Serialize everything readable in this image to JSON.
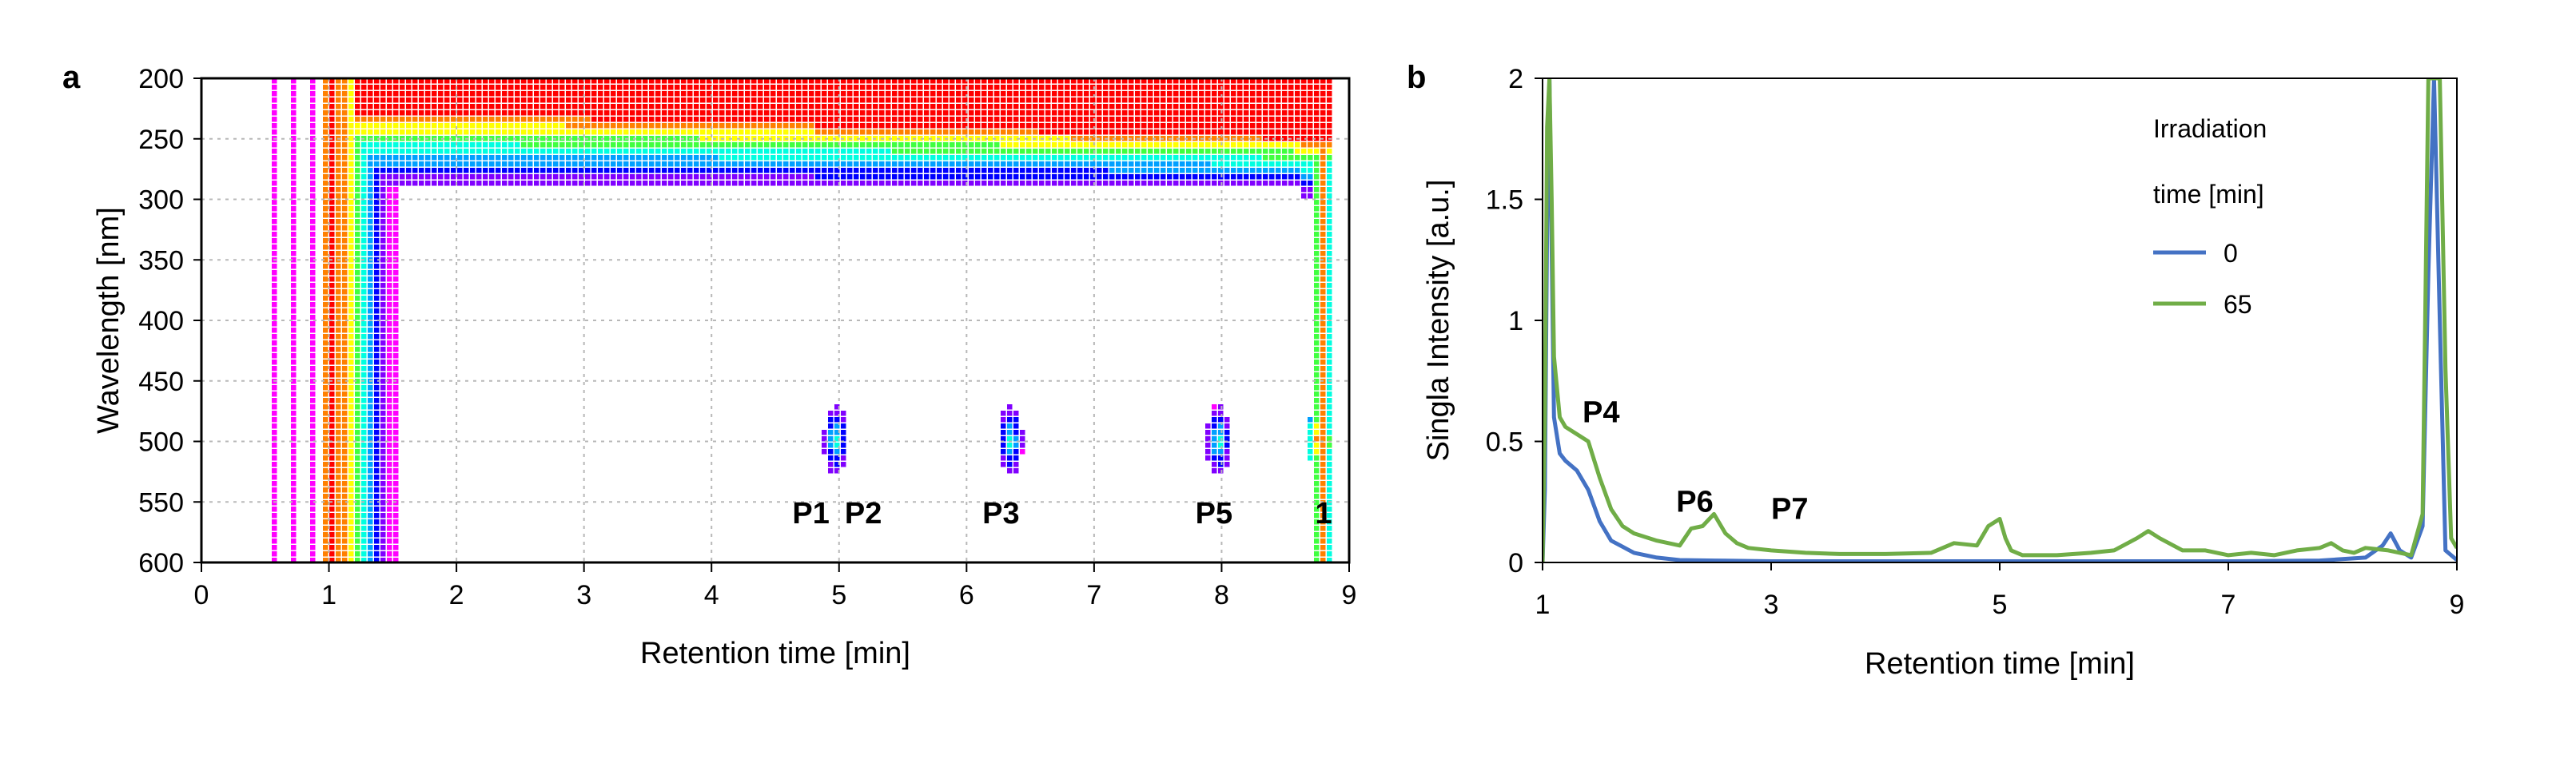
{
  "panels": {
    "a": "a",
    "b": "b"
  },
  "chart_data": [
    {
      "type": "heatmap",
      "panel": "a",
      "xlabel": "Retention time [min]",
      "ylabel": "Wavelength [nm]",
      "xlim": [
        0,
        9
      ],
      "ylim": [
        600,
        200
      ],
      "xticks": [
        "0",
        "1",
        "2",
        "3",
        "4",
        "5",
        "6",
        "7",
        "8",
        "9"
      ],
      "yticks": [
        "200",
        "250",
        "300",
        "350",
        "400",
        "450",
        "500",
        "550",
        "600"
      ],
      "grid": true,
      "colormap": [
        "#ff00ff",
        "#8000ff",
        "#0000ff",
        "#00a0ff",
        "#00ffe0",
        "#40ff40",
        "#ffff00",
        "#ff8000",
        "#ff0000"
      ],
      "background_band": {
        "x_range": [
          1.5,
          8.8
        ],
        "wavelength_absorbing_below": 290
      },
      "solvent_front": {
        "x_range": [
          0.95,
          1.55
        ]
      },
      "spots": [
        {
          "label": "P1 P2",
          "x": 4.98,
          "wavelength": 500
        },
        {
          "label": "P3",
          "x": 6.35,
          "wavelength": 500
        },
        {
          "label": "P5",
          "x": 7.98,
          "wavelength": 500
        },
        {
          "label": "1",
          "x": 8.78,
          "wavelength": 500
        }
      ],
      "annotations": [
        "P1",
        "P2",
        "P3",
        "P5",
        "1"
      ]
    },
    {
      "type": "line",
      "panel": "b",
      "xlabel": "Retention time [min]",
      "ylabel": "Singla Intensity [a.u.]",
      "xlim": [
        1,
        9
      ],
      "ylim": [
        0,
        2
      ],
      "xticks": [
        "1",
        "3",
        "5",
        "7",
        "9"
      ],
      "yticks": [
        "0",
        "0.5",
        "1",
        "1.5",
        "2"
      ],
      "legend_title": [
        "Irradiation",
        "time [min]"
      ],
      "legend_position": "top-right",
      "annotations": [
        {
          "text": "P4",
          "x": 1.35,
          "y": 0.58
        },
        {
          "text": "P6",
          "x": 2.17,
          "y": 0.21
        },
        {
          "text": "P7",
          "x": 3.0,
          "y": 0.18
        }
      ],
      "series": [
        {
          "name": "0",
          "color": "#4472c4",
          "x": [
            1.0,
            1.02,
            1.04,
            1.06,
            1.08,
            1.1,
            1.15,
            1.2,
            1.3,
            1.4,
            1.5,
            1.6,
            1.8,
            2.0,
            2.2,
            2.5,
            3.0,
            3.5,
            4.0,
            5.0,
            6.0,
            7.0,
            7.8,
            8.2,
            8.35,
            8.42,
            8.5,
            8.6,
            8.7,
            8.75,
            8.8,
            8.85,
            8.9,
            9.0
          ],
          "y": [
            0.0,
            0.3,
            1.4,
            2.0,
            1.3,
            0.6,
            0.45,
            0.42,
            0.38,
            0.3,
            0.17,
            0.09,
            0.04,
            0.02,
            0.01,
            0.008,
            0.005,
            0.005,
            0.005,
            0.005,
            0.005,
            0.005,
            0.008,
            0.02,
            0.07,
            0.12,
            0.05,
            0.02,
            0.15,
            1.2,
            2.0,
            1.0,
            0.05,
            0.01
          ]
        },
        {
          "name": "65",
          "color": "#70ad47",
          "x": [
            1.0,
            1.02,
            1.04,
            1.06,
            1.08,
            1.1,
            1.15,
            1.2,
            1.3,
            1.4,
            1.5,
            1.6,
            1.7,
            1.8,
            2.0,
            2.2,
            2.3,
            2.4,
            2.5,
            2.6,
            2.7,
            2.8,
            3.0,
            3.3,
            3.6,
            4.0,
            4.4,
            4.6,
            4.8,
            4.9,
            5.0,
            5.05,
            5.1,
            5.2,
            5.5,
            5.8,
            6.0,
            6.2,
            6.3,
            6.4,
            6.6,
            6.8,
            7.0,
            7.2,
            7.4,
            7.6,
            7.8,
            7.9,
            8.0,
            8.1,
            8.2,
            8.4,
            8.6,
            8.7,
            8.75,
            8.8,
            8.85,
            8.9,
            8.95,
            9.0
          ],
          "y": [
            0.0,
            0.6,
            1.8,
            2.0,
            1.5,
            0.85,
            0.6,
            0.56,
            0.53,
            0.5,
            0.35,
            0.22,
            0.15,
            0.12,
            0.09,
            0.07,
            0.14,
            0.15,
            0.2,
            0.12,
            0.08,
            0.06,
            0.05,
            0.04,
            0.035,
            0.035,
            0.04,
            0.08,
            0.07,
            0.15,
            0.18,
            0.1,
            0.05,
            0.03,
            0.03,
            0.04,
            0.05,
            0.1,
            0.13,
            0.1,
            0.05,
            0.05,
            0.03,
            0.04,
            0.03,
            0.05,
            0.06,
            0.08,
            0.05,
            0.04,
            0.06,
            0.05,
            0.03,
            0.2,
            2.0,
            2.0,
            2.0,
            0.8,
            0.1,
            0.06
          ]
        }
      ]
    }
  ]
}
